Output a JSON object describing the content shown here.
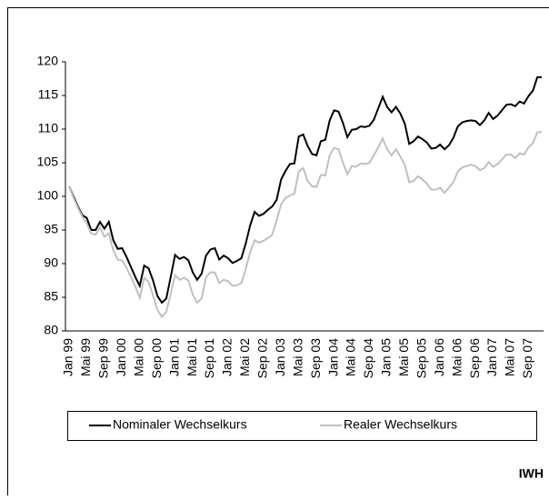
{
  "chart_data": {
    "type": "line",
    "categories": [
      "Jan 99",
      null,
      null,
      null,
      "Mai 99",
      null,
      null,
      null,
      "Sep 99",
      null,
      null,
      null,
      "Jan 00",
      null,
      null,
      null,
      "Mai 00",
      null,
      null,
      null,
      "Sep 00",
      null,
      null,
      null,
      "Jan 01",
      null,
      null,
      null,
      "Mai 01",
      null,
      null,
      null,
      "Sep 01",
      null,
      null,
      null,
      "Jan 02",
      null,
      null,
      null,
      "Mai 02",
      null,
      null,
      null,
      "Sep 02",
      null,
      null,
      null,
      "Jan 03",
      null,
      null,
      null,
      "Mai 03",
      null,
      null,
      null,
      "Sep 03",
      null,
      null,
      null,
      "Jan 04",
      null,
      null,
      null,
      "Mai 04",
      null,
      null,
      null,
      "Sep 04",
      null,
      null,
      null,
      "Jan 05",
      null,
      null,
      null,
      "Mai 05",
      null,
      null,
      null,
      "Sep 05",
      null,
      null,
      null,
      "Jan 06",
      null,
      null,
      null,
      "Mai 06",
      null,
      null,
      null,
      "Sep 06",
      null,
      null,
      null,
      "Jan 07",
      null,
      null,
      null,
      "Mai 07",
      null,
      null,
      null,
      "Sep 07",
      null,
      null,
      null
    ],
    "series": [
      {
        "name": "Nominaler Wechselkurs",
        "color": "#000000",
        "values": [
          101.5,
          100,
          98.5,
          97.2,
          96.8,
          95,
          95,
          96.2,
          95.2,
          96.2,
          93.5,
          92.2,
          92.3,
          91,
          89.5,
          88,
          86.7,
          89.7,
          89.3,
          87.5,
          85.2,
          84.2,
          84.8,
          88,
          91.3,
          90.7,
          91,
          90.5,
          88.7,
          87.6,
          88.5,
          91.2,
          92.1,
          92.3,
          90.6,
          91.2,
          90.8,
          90.1,
          90.4,
          90.8,
          93,
          95.7,
          97.7,
          97.1,
          97.4,
          98,
          98.5,
          99.5,
          102.5,
          103.8,
          104.8,
          104.9,
          108.9,
          109.2,
          107.5,
          106.3,
          106.1,
          108.2,
          108.4,
          111.3,
          112.8,
          112.6,
          110.9,
          108.8,
          109.9,
          110,
          110.4,
          110.3,
          110.5,
          111.4,
          113.1,
          114.8,
          113.3,
          112.5,
          113.3,
          112.3,
          110.8,
          107.8,
          108.2,
          108.9,
          108.5,
          108,
          107.1,
          107.2,
          107.7,
          107,
          107.6,
          108.7,
          110.4,
          111,
          111.2,
          111.3,
          111.2,
          110.6,
          111.3,
          112.4,
          111.5,
          112,
          112.8,
          113.6,
          113.7,
          113.4,
          114.1,
          113.8,
          114.9,
          115.7,
          117.7,
          117.7
        ]
      },
      {
        "name": "Realer Wechselkurs",
        "color": "#c0c0c0",
        "values": [
          101.5,
          99.8,
          98.3,
          97,
          96,
          94.5,
          94.3,
          95.4,
          94,
          94.5,
          92,
          90.6,
          90.5,
          89.4,
          88,
          86.6,
          84.9,
          87.9,
          87.3,
          85.3,
          83.1,
          82.1,
          82.8,
          85.5,
          88.3,
          87.6,
          87.9,
          87.5,
          85.4,
          84.2,
          84.8,
          88,
          88.7,
          88.7,
          87.1,
          87.6,
          87.4,
          86.7,
          86.8,
          87.1,
          89.2,
          91.7,
          93.5,
          93.1,
          93.4,
          93.8,
          94.3,
          96.5,
          98.8,
          99.8,
          100.1,
          100.4,
          103.7,
          104.2,
          102.3,
          101.5,
          101.4,
          103.2,
          103.1,
          106.1,
          107.2,
          107,
          105,
          103.3,
          104.5,
          104.4,
          104.9,
          104.8,
          105,
          106.1,
          107.3,
          108.6,
          107,
          106.1,
          107,
          105.9,
          104.7,
          102.1,
          102.3,
          103,
          102.5,
          101.9,
          101,
          101,
          101.3,
          100.5,
          101.3,
          102.1,
          103.7,
          104.3,
          104.5,
          104.7,
          104.5,
          103.9,
          104.2,
          105.1,
          104.4,
          104.8,
          105.5,
          106.2,
          106.2,
          105.7,
          106.4,
          106.2,
          107.3,
          107.9,
          109.5,
          109.6
        ]
      }
    ],
    "ylim": [
      80,
      120
    ],
    "yticks": [
      80,
      85,
      90,
      95,
      100,
      105,
      110,
      115,
      120
    ],
    "legend": "bottom",
    "source": "IWH"
  }
}
